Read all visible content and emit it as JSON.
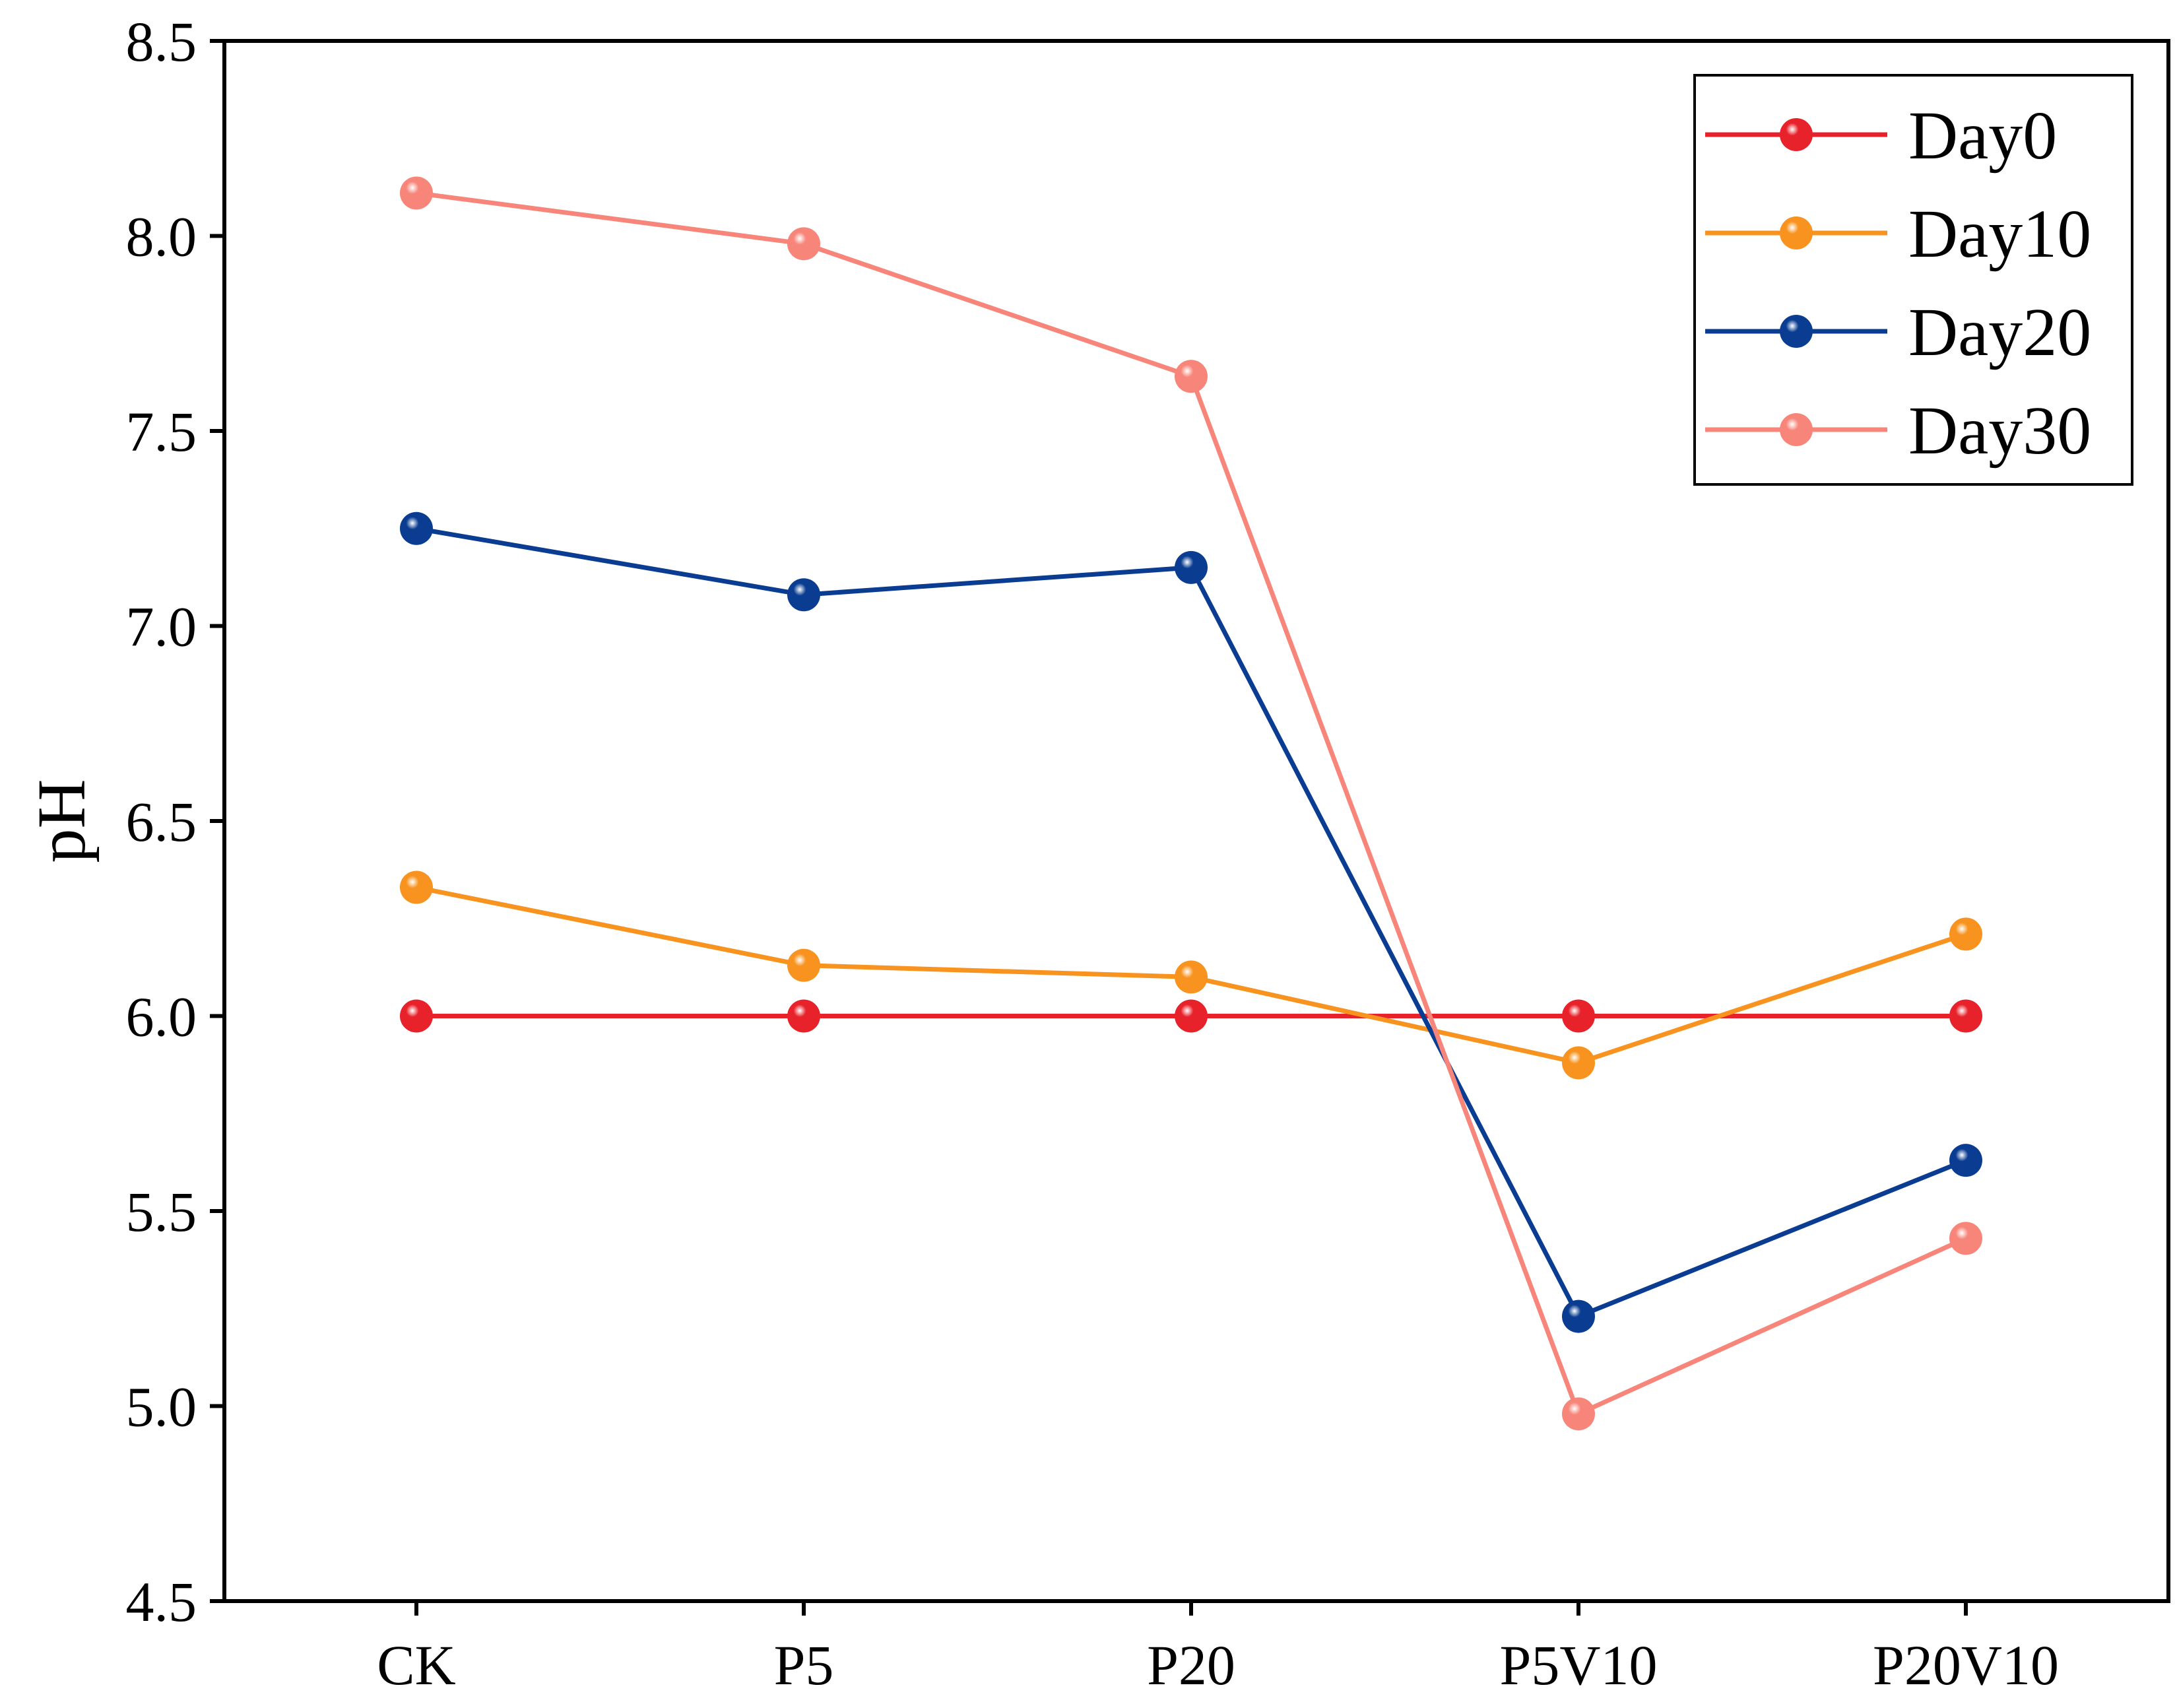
{
  "chart_data": {
    "type": "line",
    "title": "",
    "xlabel": "",
    "ylabel": "pH",
    "ylim": [
      4.5,
      8.5
    ],
    "yticks": [
      "4.5",
      "5.0",
      "5.5",
      "6.0",
      "6.5",
      "7.0",
      "7.5",
      "8.0",
      "8.5"
    ],
    "categories": [
      "CK",
      "P5",
      "P20",
      "P5V10",
      "P20V10"
    ],
    "grid": false,
    "legend_position": "top-right",
    "series": [
      {
        "name": "Day0",
        "color": "#e8222b",
        "values": [
          6.0,
          6.0,
          6.0,
          6.0,
          6.0
        ]
      },
      {
        "name": "Day10",
        "color": "#f7931e",
        "values": [
          6.33,
          6.13,
          6.1,
          5.88,
          6.21
        ]
      },
      {
        "name": "Day20",
        "color": "#0a3d91",
        "values": [
          7.25,
          7.08,
          7.15,
          5.23,
          5.63
        ]
      },
      {
        "name": "Day30",
        "color": "#f7857a",
        "values": [
          8.11,
          7.98,
          7.64,
          4.98,
          5.43
        ]
      }
    ]
  }
}
